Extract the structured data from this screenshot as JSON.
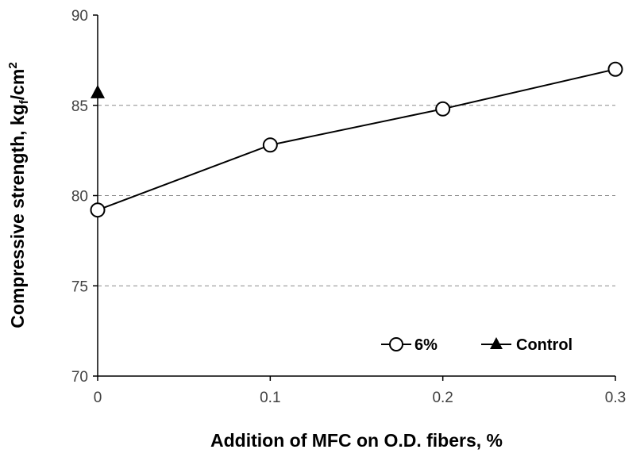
{
  "chart_data": {
    "type": "line",
    "x": [
      0,
      0.1,
      0.2,
      0.3
    ],
    "x_tick_labels": [
      "0",
      "0.1",
      "0.2",
      "0.3"
    ],
    "xlim": [
      0,
      0.3
    ],
    "ylim": [
      70,
      90
    ],
    "y_ticks": [
      70,
      75,
      80,
      85,
      90
    ],
    "xlabel": "Addition of MFC on O.D. fibers, %",
    "ylabel_main": "Compressive strength, kg",
    "ylabel_sub": "f",
    "ylabel_tail": "/cm",
    "ylabel_sup": "2",
    "grid": "horizontal dashed",
    "legend_position": "bottom-right",
    "series": [
      {
        "name": "6%",
        "x": [
          0,
          0.1,
          0.2,
          0.3
        ],
        "values": [
          79.2,
          82.8,
          84.8,
          87.0
        ],
        "marker": "open-circle",
        "color": "#000000"
      },
      {
        "name": "Control",
        "x": [
          0
        ],
        "values": [
          85.7
        ],
        "marker": "filled-triangle",
        "color": "#000000"
      }
    ]
  }
}
